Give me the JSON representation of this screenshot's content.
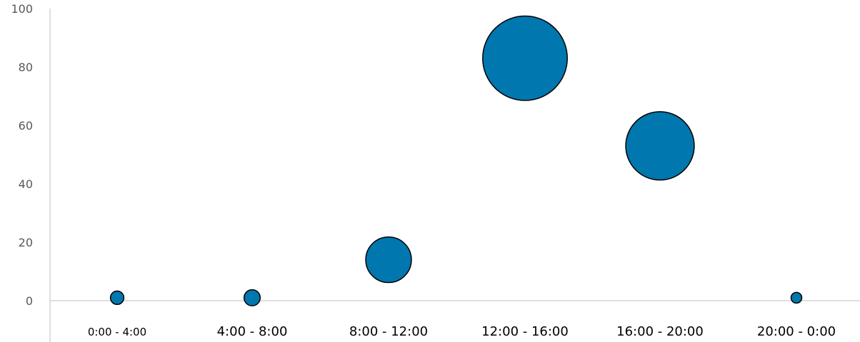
{
  "chart_data": {
    "type": "bubble",
    "categories": [
      "0:00 - 4:00",
      "4:00 - 8:00",
      "8:00 - 12:00",
      "12:00 - 16:00",
      "16:00 - 20:00",
      "20:00 - 0:00"
    ],
    "series": [
      {
        "values": [
          1,
          1,
          14,
          83,
          53,
          1
        ],
        "sizes": [
          1,
          1.2,
          3.4,
          6.3,
          5.1,
          0.8
        ]
      }
    ],
    "ylim": [
      0,
      100
    ],
    "yticks": [
      0,
      20,
      40,
      60,
      80,
      100
    ],
    "grid": false,
    "colors": {
      "bubble_fill": "#0077AF",
      "bubble_stroke": "#000000",
      "axis": "#BFBFBF"
    }
  }
}
